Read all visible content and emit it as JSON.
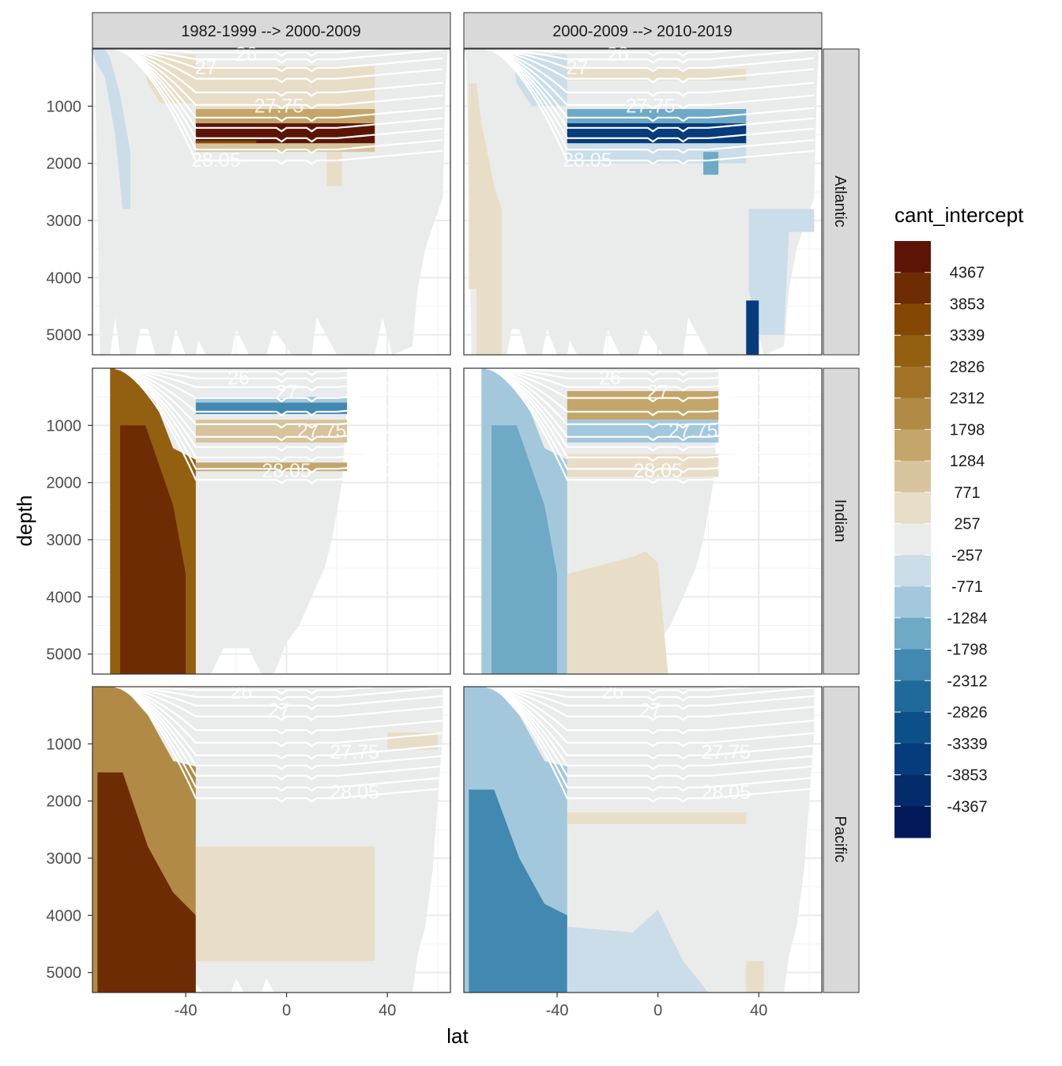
{
  "chart_data": {
    "type": "heatmap",
    "facet_columns": [
      "1982-1999 --> 2000-2009",
      "2000-2009 --> 2010-2019"
    ],
    "facet_rows": [
      "Atlantic",
      "Indian",
      "Pacific"
    ],
    "xlabel": "lat",
    "ylabel": "depth",
    "x_ticks": [
      -40,
      0,
      40
    ],
    "x_tick_labels": [
      "-40",
      "0",
      "40"
    ],
    "xlim": [
      -77,
      65
    ],
    "y_ticks": [
      1000,
      2000,
      3000,
      4000,
      5000
    ],
    "y_tick_labels": [
      "1000",
      "2000",
      "3000",
      "4000",
      "5000"
    ],
    "ylim": [
      5350,
      0
    ],
    "y_reversed": true,
    "grid": true,
    "legend": {
      "title": "cant_intercept",
      "position": "right",
      "labels": [
        "4367",
        "3853",
        "3339",
        "2826",
        "2312",
        "1798",
        "1284",
        "771",
        "257",
        "-257",
        "-771",
        "-1284",
        "-1798",
        "-2312",
        "-2826",
        "-3339",
        "-3853",
        "-4367"
      ],
      "colors": [
        "#5c1505",
        "#6e2c04",
        "#844704",
        "#935f10",
        "#a27326",
        "#b18a45",
        "#c4a66a",
        "#d7c49d",
        "#e8ddc7",
        "#eaeceb",
        "#cadde9",
        "#a3c8dc",
        "#6ea9c6",
        "#4189b0",
        "#1f6a9b",
        "#0c5089",
        "#063b7c",
        "#042c6b",
        "#021a5a"
      ]
    },
    "density_contours": [
      "26",
      "27",
      "27.75",
      "28.05"
    ],
    "panels": [
      {
        "basin": "Atlantic",
        "period": "1982-1999 --> 2000-2009",
        "max_intercept_band": 4367,
        "band_depth": [
          1300,
          1650
        ]
      },
      {
        "basin": "Atlantic",
        "period": "2000-2009 --> 2010-2019",
        "min_intercept_band": -4367,
        "band_depth": [
          1300,
          1650
        ]
      },
      {
        "basin": "Indian",
        "period": "1982-1999 --> 2000-2009",
        "southern_deep_max": 3339
      },
      {
        "basin": "Indian",
        "period": "2000-2009 --> 2010-2019",
        "southern_deep_min": -1798
      },
      {
        "basin": "Pacific",
        "period": "1982-1999 --> 2000-2009",
        "southern_deep_max": 3339
      },
      {
        "basin": "Pacific",
        "period": "2000-2009 --> 2010-2019",
        "southern_deep_min": -1798
      }
    ]
  }
}
